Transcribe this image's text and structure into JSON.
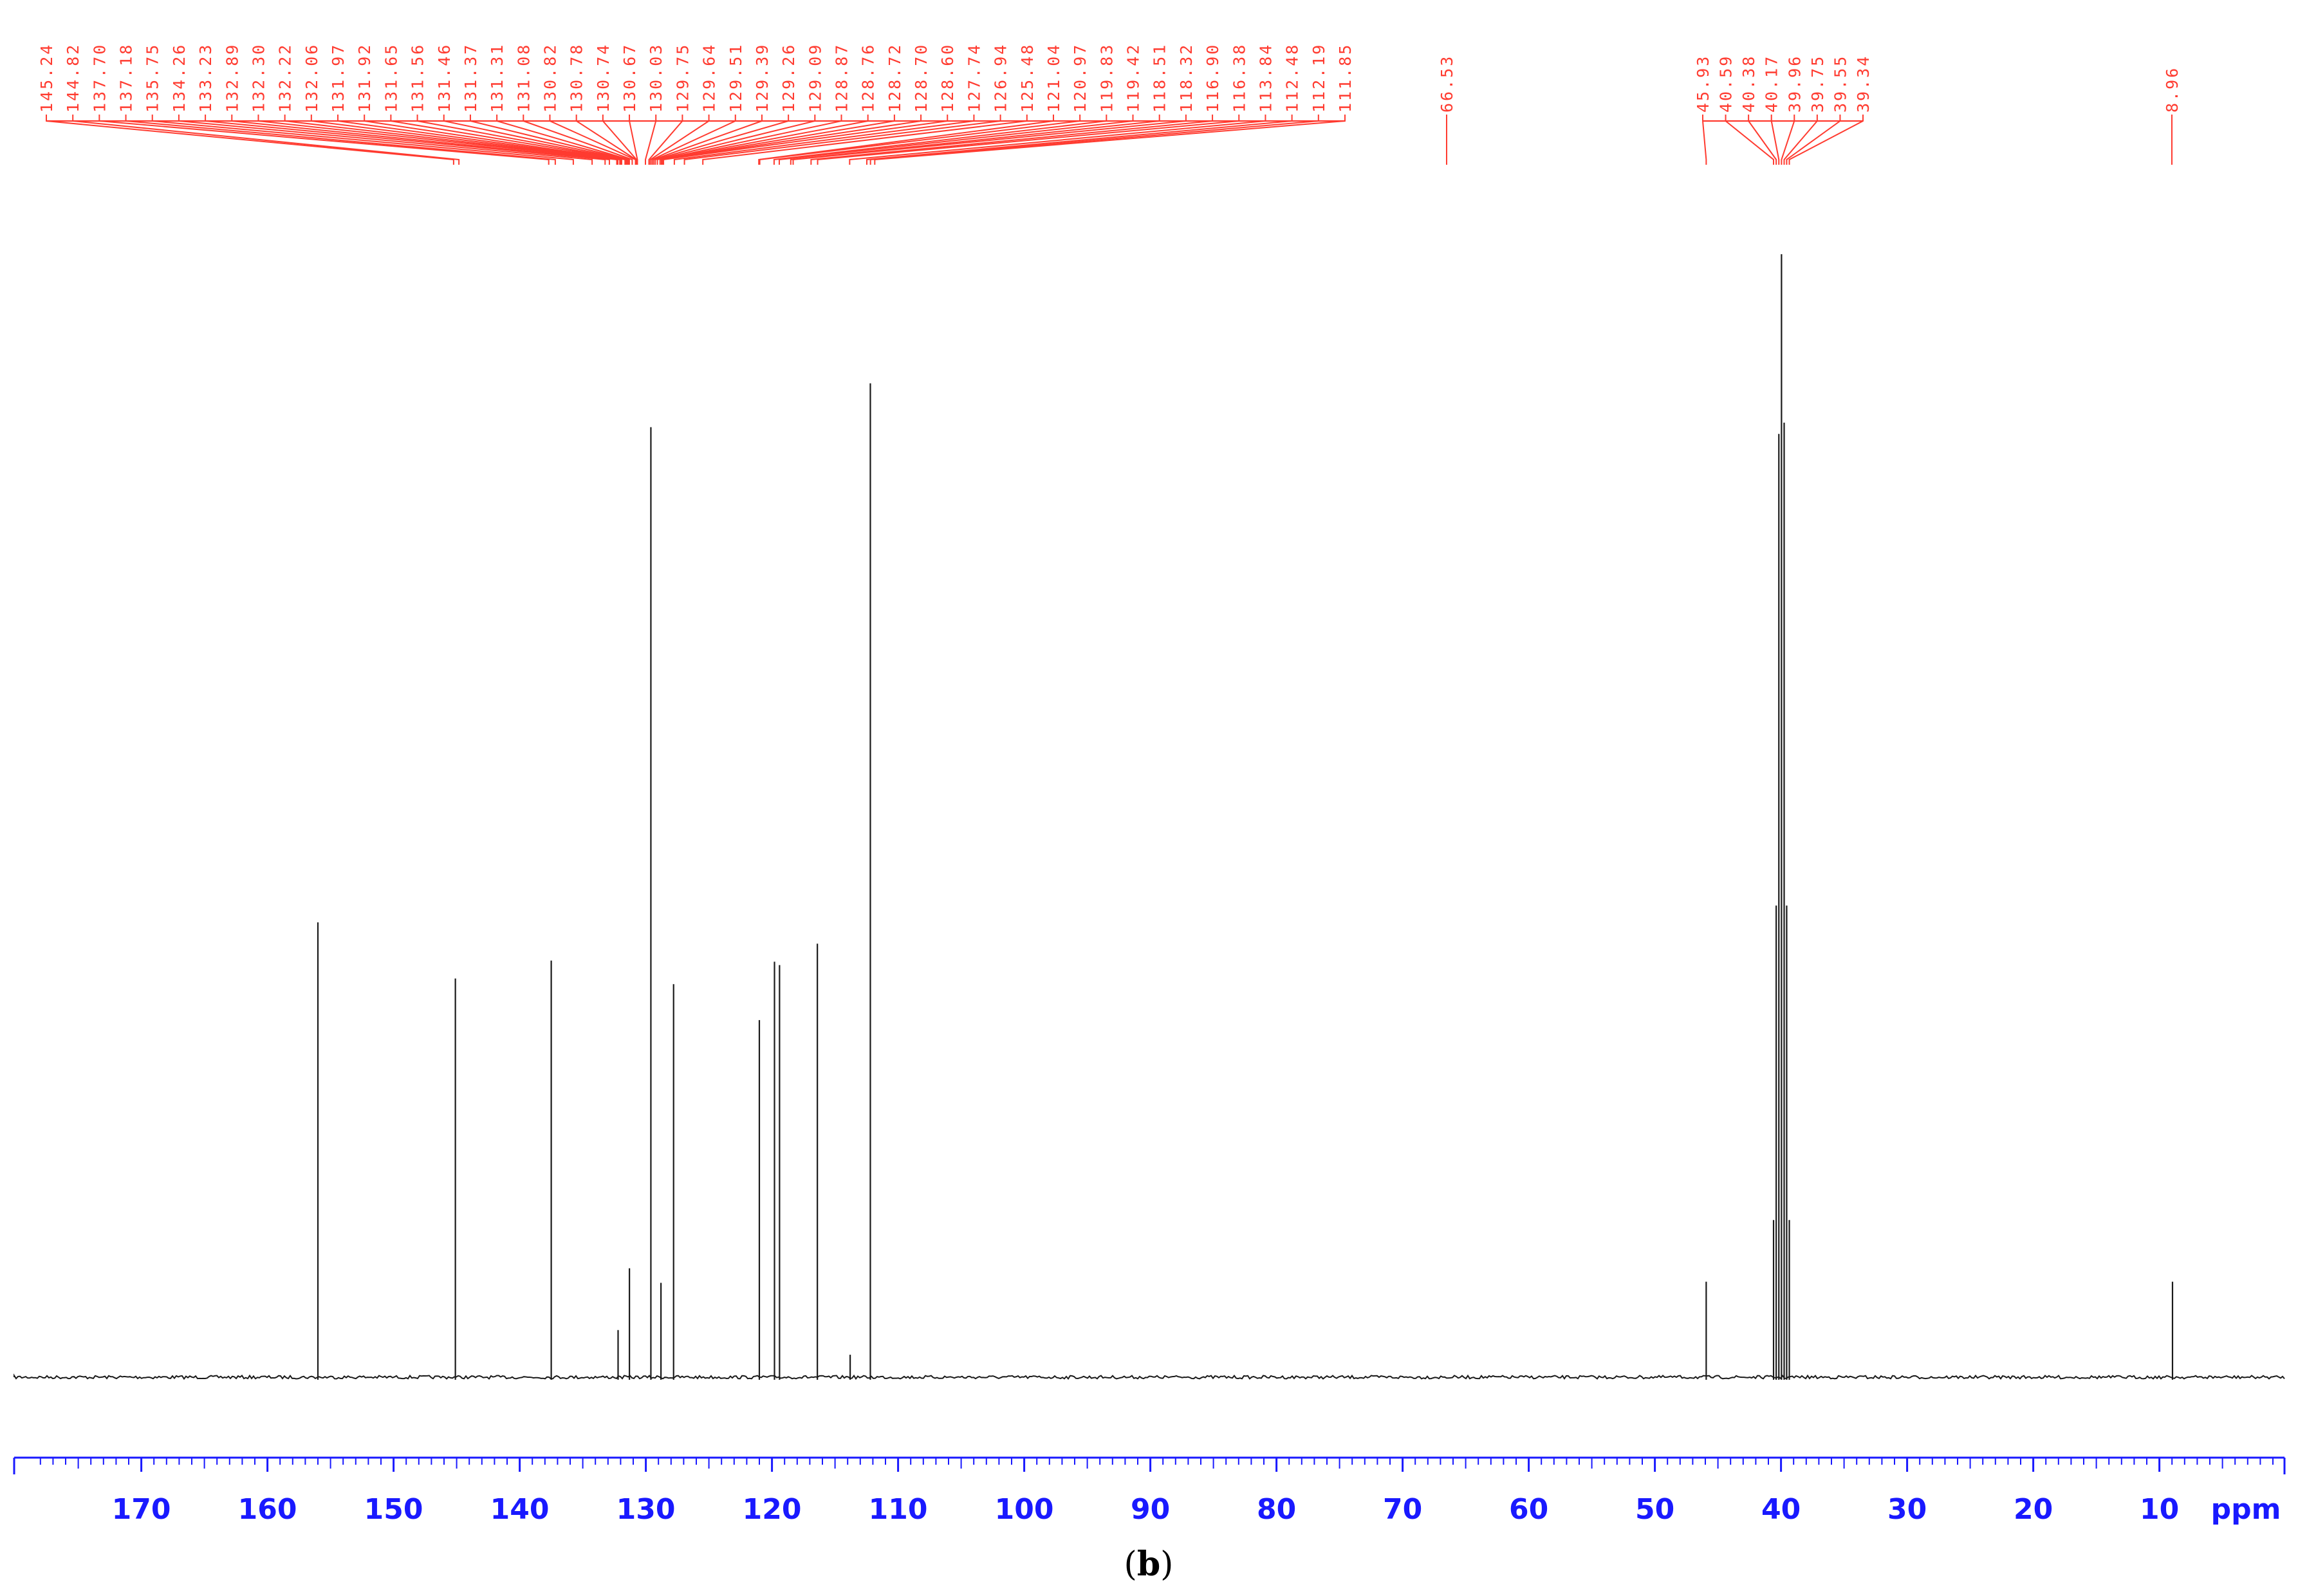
{
  "chart_data": {
    "type": "line",
    "x_unit": "ppm",
    "x_reversed": true,
    "xlim": [
      180,
      0
    ],
    "x_major_ticks": [
      170,
      160,
      150,
      140,
      130,
      120,
      110,
      100,
      90,
      80,
      70,
      60,
      50,
      40,
      30,
      20,
      10
    ],
    "x_minor_step": 1,
    "grid": false,
    "legend": "none",
    "caption": {
      "prefix": "(",
      "letter": "b",
      "suffix": ")"
    },
    "colors": {
      "spectrum": "#1a1a1a",
      "peak_labels": "#ff3b30",
      "axis": "#1919ff"
    },
    "peak_label_groups": [
      {
        "labels": [
          "145.24",
          "144.82",
          "137.70",
          "137.18",
          "135.75",
          "134.26",
          "133.23",
          "132.89",
          "132.30",
          "132.22",
          "132.06",
          "131.97",
          "131.92",
          "131.65",
          "131.56",
          "131.46",
          "131.37",
          "131.31",
          "131.08",
          "130.82",
          "130.78",
          "130.74",
          "130.67",
          "130.03",
          "129.75",
          "129.64",
          "129.51",
          "129.39",
          "129.26",
          "129.09",
          "128.87",
          "128.76",
          "128.72",
          "128.70",
          "128.60",
          "127.74",
          "126.94",
          "125.48",
          "121.04",
          "120.97",
          "119.83",
          "119.42",
          "118.51",
          "118.32",
          "116.90",
          "116.38",
          "113.84",
          "112.48",
          "112.19",
          "111.85"
        ],
        "targets": [
          145.24,
          144.82,
          137.7,
          137.18,
          135.75,
          134.26,
          133.23,
          132.89,
          132.3,
          132.22,
          132.06,
          131.97,
          131.92,
          131.65,
          131.56,
          131.46,
          131.37,
          131.31,
          131.08,
          130.82,
          130.78,
          130.74,
          130.67,
          130.03,
          129.75,
          129.64,
          129.51,
          129.39,
          129.26,
          129.09,
          128.87,
          128.76,
          128.72,
          128.7,
          128.6,
          127.74,
          126.94,
          125.48,
          121.04,
          120.97,
          119.83,
          119.42,
          118.51,
          118.32,
          116.9,
          116.38,
          113.84,
          112.48,
          112.19,
          111.85
        ]
      },
      {
        "labels": [
          "66.53"
        ],
        "targets": [
          66.53
        ]
      },
      {
        "labels": [
          "45.93",
          "40.59",
          "40.38",
          "40.17",
          "39.96",
          "39.75",
          "39.55",
          "39.34"
        ],
        "targets": [
          45.93,
          40.59,
          40.38,
          40.17,
          39.96,
          39.75,
          39.55,
          39.34
        ]
      },
      {
        "labels": [
          "8.96"
        ],
        "targets": [
          8.96
        ]
      }
    ],
    "series": [
      {
        "peaks": [
          {
            "ppm": 156.0,
            "height": 0.405
          },
          {
            "ppm": 145.1,
            "height": 0.355
          },
          {
            "ppm": 137.5,
            "height": 0.371
          },
          {
            "ppm": 131.3,
            "height": 0.097
          },
          {
            "ppm": 132.2,
            "height": 0.042
          },
          {
            "ppm": 129.6,
            "height": 0.846
          },
          {
            "ppm": 128.8,
            "height": 0.084
          },
          {
            "ppm": 127.8,
            "height": 0.35
          },
          {
            "ppm": 121.0,
            "height": 0.318
          },
          {
            "ppm": 119.8,
            "height": 0.37
          },
          {
            "ppm": 119.4,
            "height": 0.367
          },
          {
            "ppm": 116.4,
            "height": 0.386
          },
          {
            "ppm": 113.8,
            "height": 0.02
          },
          {
            "ppm": 112.2,
            "height": 0.885
          },
          {
            "ppm": 45.93,
            "height": 0.085
          },
          {
            "ppm": 40.59,
            "height": 0.14
          },
          {
            "ppm": 40.38,
            "height": 0.42
          },
          {
            "ppm": 40.17,
            "height": 0.84
          },
          {
            "ppm": 39.96,
            "height": 1.0
          },
          {
            "ppm": 39.75,
            "height": 0.85
          },
          {
            "ppm": 39.55,
            "height": 0.42
          },
          {
            "ppm": 39.34,
            "height": 0.14
          },
          {
            "ppm": 8.96,
            "height": 0.085
          }
        ]
      }
    ]
  }
}
